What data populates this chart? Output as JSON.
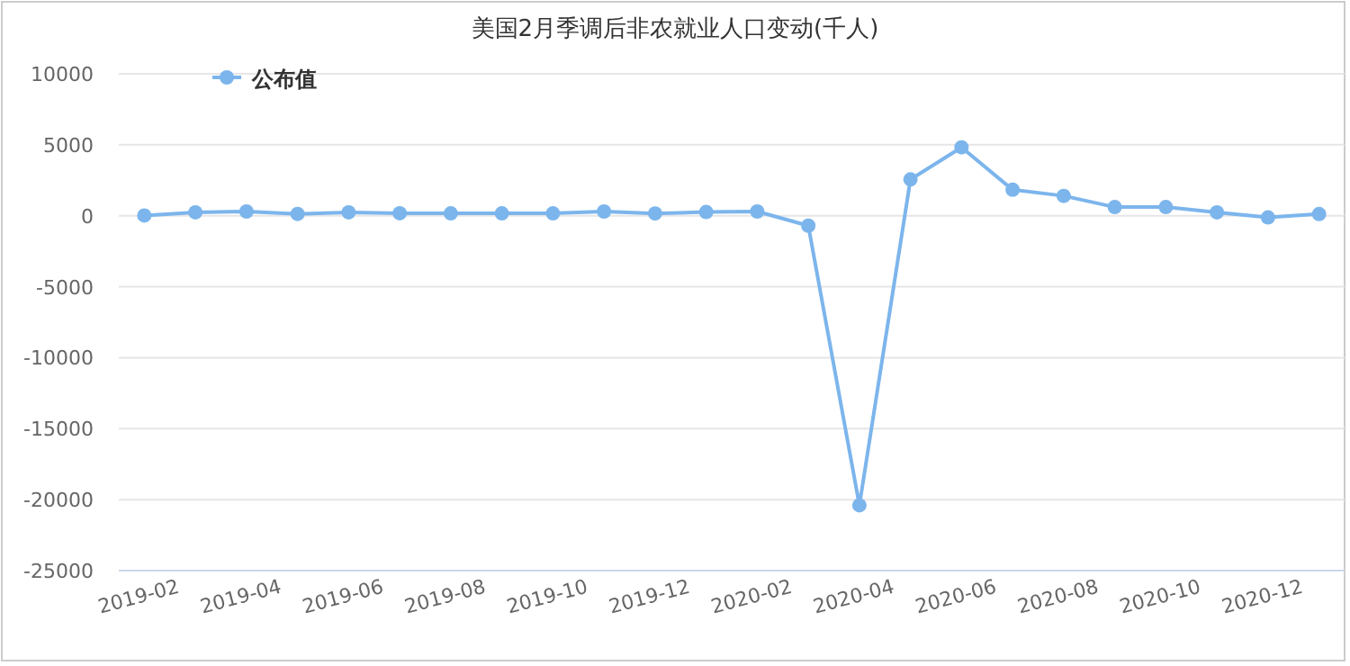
{
  "chart_data": {
    "type": "line",
    "title": "美国2月季调后非农就业人口变动(千人)",
    "categories": [
      "2019-02",
      null,
      "2019-04",
      null,
      "2019-06",
      null,
      "2019-08",
      null,
      "2019-10",
      null,
      "2019-12",
      null,
      "2020-02",
      null,
      "2020-04",
      null,
      "2020-06",
      null,
      "2020-08",
      null,
      "2020-10",
      null,
      "2020-12",
      null
    ],
    "series": [
      {
        "name": "公布值",
        "color": "#7cb5ec",
        "values": [
          20,
          240,
          300,
          130,
          240,
          180,
          170,
          170,
          170,
          300,
          160,
          260,
          300,
          -700,
          -20400,
          2560,
          4820,
          1830,
          1400,
          610,
          610,
          240,
          -120,
          120
        ]
      }
    ],
    "ylim": [
      -25000,
      10000
    ],
    "yticks": [
      -25000,
      -20000,
      -15000,
      -10000,
      -5000,
      0,
      5000,
      10000
    ],
    "grid": "y",
    "legend": "top left",
    "marker": "circle"
  }
}
